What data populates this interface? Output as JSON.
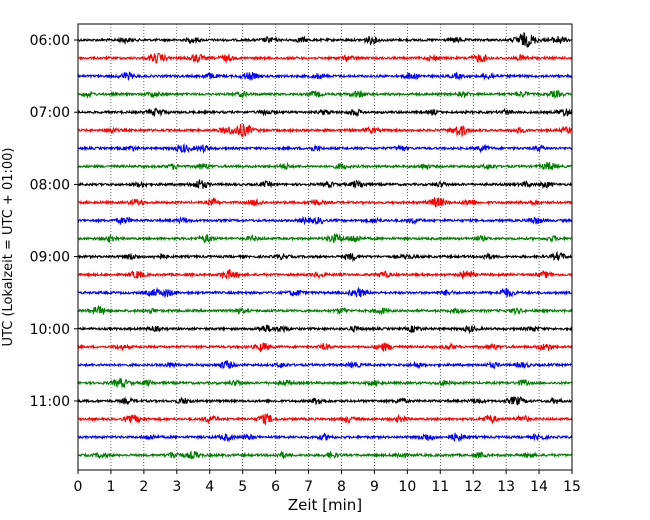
{
  "chart_data": {
    "type": "line",
    "title": "",
    "xlabel": "Zeit  [min]",
    "ylabel": "UTC (Lokalzeit = UTC + 01:00)",
    "xlim": [
      0,
      15
    ],
    "x_ticks": [
      "0",
      "1",
      "2",
      "3",
      "4",
      "5",
      "6",
      "7",
      "8",
      "9",
      "10",
      "11",
      "12",
      "13",
      "14",
      "15"
    ],
    "y_ticks": [
      "06:00",
      "07:00",
      "08:00",
      "09:00",
      "10:00",
      "11:00"
    ],
    "grid": "vertical dotted lines at each minute",
    "colors": [
      "#000000",
      "#ff0000",
      "#0000ff",
      "#008000"
    ],
    "traces": [
      {
        "start": "06:00",
        "color": "#000000",
        "events": [
          [
            1.4,
            0.3
          ],
          [
            3.5,
            0.3
          ],
          [
            5.8,
            0.35
          ],
          [
            6.8,
            0.3
          ],
          [
            8.9,
            0.45
          ],
          [
            11.5,
            0.3
          ],
          [
            13.6,
            0.9
          ],
          [
            14.6,
            0.5
          ]
        ]
      },
      {
        "start": "06:15",
        "color": "#ff0000",
        "events": [
          [
            2.4,
            0.6
          ],
          [
            3.6,
            0.5
          ],
          [
            4.5,
            0.4
          ],
          [
            8.2,
            0.3
          ],
          [
            10.8,
            0.3
          ],
          [
            12.2,
            0.5
          ],
          [
            13.5,
            0.35
          ]
        ]
      },
      {
        "start": "06:30",
        "color": "#0000ff",
        "events": [
          [
            1.5,
            0.45
          ],
          [
            4.0,
            0.35
          ],
          [
            5.2,
            0.5
          ],
          [
            7.3,
            0.3
          ],
          [
            10.1,
            0.4
          ],
          [
            11.5,
            0.3
          ],
          [
            12.5,
            0.4
          ]
        ]
      },
      {
        "start": "06:45",
        "color": "#008000",
        "events": [
          [
            0.3,
            0.3
          ],
          [
            2.3,
            0.3
          ],
          [
            5.0,
            0.3
          ],
          [
            7.2,
            0.35
          ],
          [
            8.5,
            0.4
          ],
          [
            11.7,
            0.3
          ],
          [
            13.5,
            0.3
          ],
          [
            14.5,
            0.4
          ]
        ]
      },
      {
        "start": "07:00",
        "color": "#000000",
        "events": [
          [
            2.4,
            0.5
          ],
          [
            5.7,
            0.3
          ],
          [
            7.5,
            0.3
          ],
          [
            8.4,
            0.4
          ],
          [
            10.8,
            0.3
          ],
          [
            13.0,
            0.3
          ],
          [
            14.8,
            0.5
          ]
        ]
      },
      {
        "start": "07:15",
        "color": "#ff0000",
        "events": [
          [
            1.0,
            0.3
          ],
          [
            4.5,
            0.4
          ],
          [
            5.0,
            0.8
          ],
          [
            8.9,
            0.35
          ],
          [
            11.6,
            0.7
          ],
          [
            13.4,
            0.3
          ],
          [
            14.9,
            0.4
          ]
        ]
      },
      {
        "start": "07:30",
        "color": "#0000ff",
        "events": [
          [
            1.6,
            0.3
          ],
          [
            3.2,
            0.5
          ],
          [
            3.8,
            0.4
          ],
          [
            7.2,
            0.3
          ],
          [
            9.8,
            0.3
          ],
          [
            12.3,
            0.35
          ],
          [
            14.0,
            0.3
          ]
        ]
      },
      {
        "start": "07:45",
        "color": "#008000",
        "events": [
          [
            2.9,
            0.3
          ],
          [
            3.8,
            0.35
          ],
          [
            6.3,
            0.3
          ],
          [
            8.0,
            0.35
          ],
          [
            10.5,
            0.3
          ],
          [
            12.5,
            0.3
          ],
          [
            14.3,
            0.5
          ]
        ]
      },
      {
        "start": "08:00",
        "color": "#000000",
        "events": [
          [
            1.9,
            0.3
          ],
          [
            3.7,
            0.55
          ],
          [
            5.7,
            0.3
          ],
          [
            7.6,
            0.3
          ],
          [
            8.5,
            0.45
          ],
          [
            11.0,
            0.3
          ],
          [
            13.6,
            0.3
          ],
          [
            14.2,
            0.35
          ]
        ]
      },
      {
        "start": "08:15",
        "color": "#ff0000",
        "events": [
          [
            1.8,
            0.4
          ],
          [
            4.1,
            0.35
          ],
          [
            5.4,
            0.4
          ],
          [
            7.2,
            0.35
          ],
          [
            10.9,
            0.6
          ],
          [
            11.9,
            0.4
          ],
          [
            13.8,
            0.3
          ]
        ]
      },
      {
        "start": "08:30",
        "color": "#0000ff",
        "events": [
          [
            1.4,
            0.4
          ],
          [
            3.2,
            0.3
          ],
          [
            6.9,
            0.3
          ],
          [
            7.3,
            0.35
          ],
          [
            9.0,
            0.3
          ],
          [
            10.2,
            0.3
          ],
          [
            13.9,
            0.4
          ]
        ]
      },
      {
        "start": "08:45",
        "color": "#008000",
        "events": [
          [
            1.0,
            0.35
          ],
          [
            3.9,
            0.45
          ],
          [
            5.3,
            0.3
          ],
          [
            7.8,
            0.55
          ],
          [
            8.4,
            0.45
          ],
          [
            12.2,
            0.3
          ],
          [
            14.4,
            0.3
          ]
        ]
      },
      {
        "start": "09:00",
        "color": "#000000",
        "events": [
          [
            1.6,
            0.35
          ],
          [
            2.5,
            0.3
          ],
          [
            6.2,
            0.3
          ],
          [
            8.3,
            0.4
          ],
          [
            10.0,
            0.3
          ],
          [
            12.4,
            0.3
          ],
          [
            14.6,
            0.45
          ]
        ]
      },
      {
        "start": "09:15",
        "color": "#ff0000",
        "events": [
          [
            1.8,
            0.45
          ],
          [
            4.6,
            0.55
          ],
          [
            7.3,
            0.3
          ],
          [
            9.3,
            0.35
          ],
          [
            11.8,
            0.5
          ],
          [
            14.2,
            0.35
          ]
        ]
      },
      {
        "start": "09:30",
        "color": "#0000ff",
        "events": [
          [
            2.3,
            0.4
          ],
          [
            2.7,
            0.45
          ],
          [
            6.6,
            0.4
          ],
          [
            8.5,
            0.55
          ],
          [
            11.2,
            0.3
          ],
          [
            13.0,
            0.55
          ]
        ]
      },
      {
        "start": "09:45",
        "color": "#008000",
        "events": [
          [
            0.6,
            0.5
          ],
          [
            2.2,
            0.3
          ],
          [
            4.9,
            0.3
          ],
          [
            8.0,
            0.3
          ],
          [
            9.2,
            0.35
          ],
          [
            11.5,
            0.3
          ],
          [
            13.3,
            0.3
          ]
        ]
      },
      {
        "start": "10:00",
        "color": "#000000",
        "events": [
          [
            2.3,
            0.3
          ],
          [
            5.7,
            0.45
          ],
          [
            6.2,
            0.35
          ],
          [
            8.4,
            0.3
          ],
          [
            10.2,
            0.4
          ],
          [
            11.9,
            0.35
          ],
          [
            13.8,
            0.3
          ]
        ]
      },
      {
        "start": "10:15",
        "color": "#ff0000",
        "events": [
          [
            1.3,
            0.3
          ],
          [
            5.6,
            0.5
          ],
          [
            7.5,
            0.3
          ],
          [
            9.3,
            0.5
          ],
          [
            11.3,
            0.3
          ],
          [
            12.6,
            0.3
          ],
          [
            14.2,
            0.4
          ]
        ]
      },
      {
        "start": "10:30",
        "color": "#0000ff",
        "events": [
          [
            2.8,
            0.3
          ],
          [
            4.5,
            0.5
          ],
          [
            6.2,
            0.3
          ],
          [
            8.4,
            0.3
          ],
          [
            10.3,
            0.3
          ],
          [
            12.6,
            0.3
          ],
          [
            13.5,
            0.35
          ]
        ]
      },
      {
        "start": "10:45",
        "color": "#008000",
        "events": [
          [
            1.3,
            0.55
          ],
          [
            2.1,
            0.3
          ],
          [
            4.8,
            0.3
          ],
          [
            6.3,
            0.3
          ],
          [
            9.0,
            0.3
          ],
          [
            11.1,
            0.3
          ],
          [
            13.5,
            0.3
          ]
        ]
      },
      {
        "start": "11:00",
        "color": "#000000",
        "events": [
          [
            1.5,
            0.3
          ],
          [
            3.2,
            0.35
          ],
          [
            7.3,
            0.45
          ],
          [
            9.8,
            0.3
          ],
          [
            12.1,
            0.3
          ],
          [
            13.3,
            0.55
          ],
          [
            14.5,
            0.3
          ]
        ]
      },
      {
        "start": "11:15",
        "color": "#ff0000",
        "events": [
          [
            1.7,
            0.5
          ],
          [
            4.0,
            0.4
          ],
          [
            5.7,
            0.6
          ],
          [
            8.2,
            0.35
          ],
          [
            9.8,
            0.35
          ],
          [
            12.5,
            0.5
          ],
          [
            13.5,
            0.4
          ]
        ]
      },
      {
        "start": "11:30",
        "color": "#0000ff",
        "events": [
          [
            2.2,
            0.3
          ],
          [
            4.5,
            0.4
          ],
          [
            5.2,
            0.3
          ],
          [
            7.5,
            0.35
          ],
          [
            10.6,
            0.45
          ],
          [
            11.5,
            0.5
          ],
          [
            14.0,
            0.35
          ]
        ]
      },
      {
        "start": "11:45",
        "color": "#008000",
        "events": [
          [
            0.7,
            0.3
          ],
          [
            2.9,
            0.4
          ],
          [
            3.5,
            0.45
          ],
          [
            6.2,
            0.3
          ],
          [
            7.7,
            0.35
          ],
          [
            9.8,
            0.3
          ],
          [
            12.2,
            0.3
          ],
          [
            13.7,
            0.3
          ]
        ]
      }
    ]
  }
}
